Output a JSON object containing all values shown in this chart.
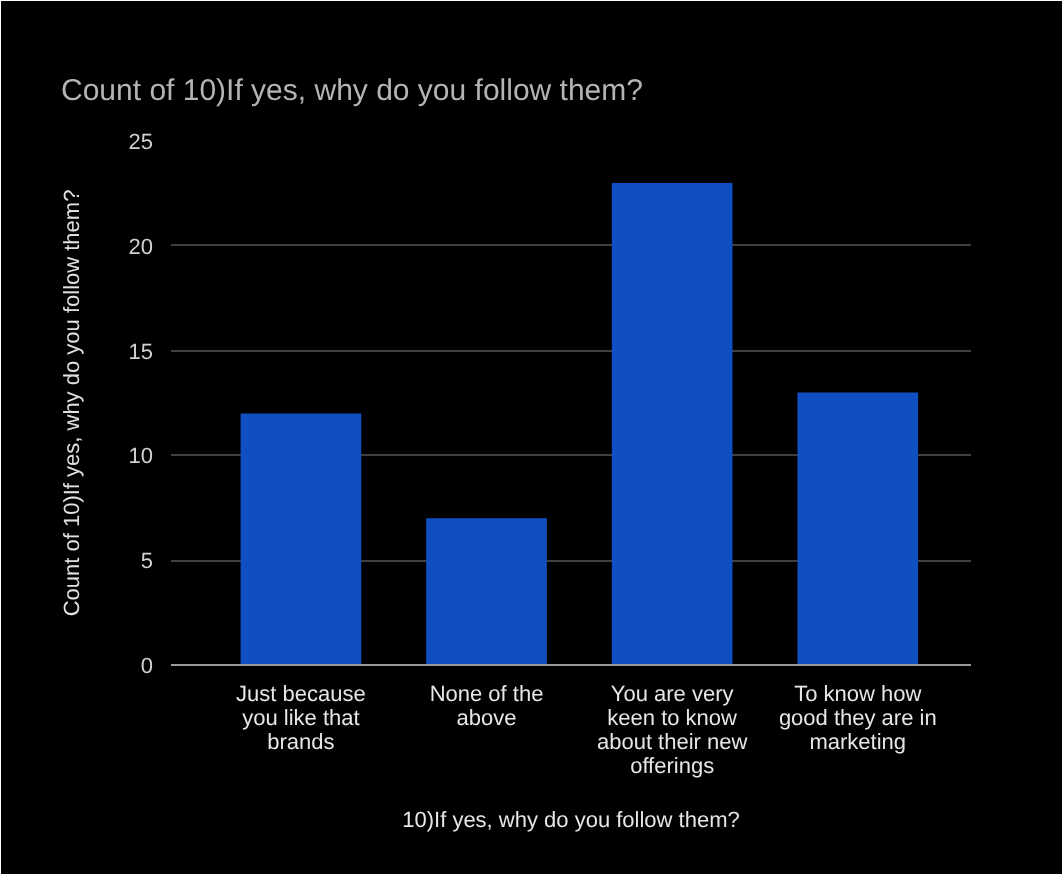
{
  "chart_data": {
    "type": "bar",
    "title": "Count of 10)If yes, why do you follow them?",
    "xlabel": "10)If yes, why do you follow them?",
    "ylabel": "Count of 10)If yes, why do you follow them?",
    "categories": [
      "Just because you like that brands",
      "None of the above",
      "You are very keen to know about their new offerings",
      "To know how good they are in marketing"
    ],
    "series": [
      {
        "color": "#0f4fc2",
        "values": [
          12,
          7,
          23,
          13
        ]
      }
    ],
    "ylim": [
      0,
      25
    ],
    "yticks": [
      0,
      5,
      10,
      15,
      20,
      25
    ],
    "grid": "y"
  }
}
